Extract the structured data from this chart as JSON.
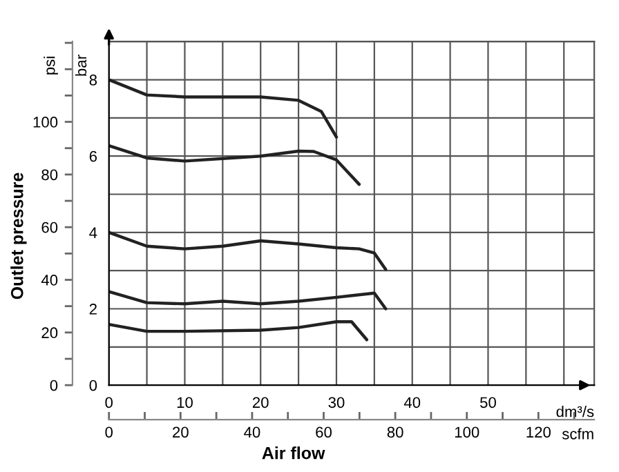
{
  "chart_data": {
    "type": "line",
    "xlabel": "dm³/s",
    "ylabel": "bar",
    "y2label": "psi",
    "x2label": "scfm",
    "annotations": [
      "Outlet pressure",
      "Air flow"
    ],
    "xlim": [
      0,
      64
    ],
    "ylim": [
      0,
      9
    ],
    "xticks": [
      0,
      {
        "value": 5,
        "label": null
      },
      10,
      {
        "value": 15,
        "label": null
      },
      20,
      {
        "value": 25,
        "label": null
      },
      30,
      {
        "value": 35,
        "label": null
      },
      40,
      {
        "value": 45,
        "label": null
      },
      50,
      {
        "value": 55,
        "label": null
      },
      {
        "value": 60,
        "label": null
      }
    ],
    "yticks": [
      0,
      {
        "value": 1,
        "label": null
      },
      2,
      {
        "value": 3,
        "label": null
      },
      4,
      {
        "value": 5,
        "label": null
      },
      6,
      {
        "value": 7,
        "label": null
      },
      8,
      {
        "value": 9,
        "label": null
      }
    ],
    "y2lim": [
      0,
      130.5
    ],
    "y2ticks": [
      0,
      20,
      40,
      60,
      80,
      100
    ],
    "x2lim": [
      0,
      135.6
    ],
    "x2ticks": [
      0,
      20,
      40,
      60,
      80,
      100,
      120
    ],
    "grid": true,
    "legend": false,
    "marker": "none",
    "line_style": "solid",
    "series": [
      {
        "color": "#222222",
        "x": [
          0,
          5,
          10,
          20,
          25,
          28,
          30
        ],
        "values": [
          8.0,
          7.6,
          7.55,
          7.55,
          7.46,
          7.17,
          6.5
        ]
      },
      {
        "color": "#222222",
        "x": [
          0,
          5,
          10,
          20,
          25,
          27,
          30,
          33
        ],
        "values": [
          6.27,
          5.95,
          5.87,
          6.0,
          6.13,
          6.12,
          5.9,
          5.26
        ]
      },
      {
        "color": "#222222",
        "x": [
          0,
          5,
          10,
          15,
          20,
          25,
          30,
          33,
          35,
          36.5
        ],
        "values": [
          4.0,
          3.64,
          3.57,
          3.64,
          3.78,
          3.7,
          3.6,
          3.57,
          3.46,
          3.03
        ]
      },
      {
        "color": "#222222",
        "x": [
          0,
          5,
          10,
          15,
          20,
          25,
          30,
          35,
          36.5
        ],
        "values": [
          2.45,
          2.16,
          2.13,
          2.2,
          2.13,
          2.2,
          2.3,
          2.41,
          2.0
        ]
      },
      {
        "color": "#222222",
        "x": [
          0,
          5,
          10,
          20,
          25,
          30,
          32,
          34
        ],
        "values": [
          1.59,
          1.41,
          1.41,
          1.44,
          1.51,
          1.66,
          1.66,
          1.19
        ]
      }
    ]
  }
}
